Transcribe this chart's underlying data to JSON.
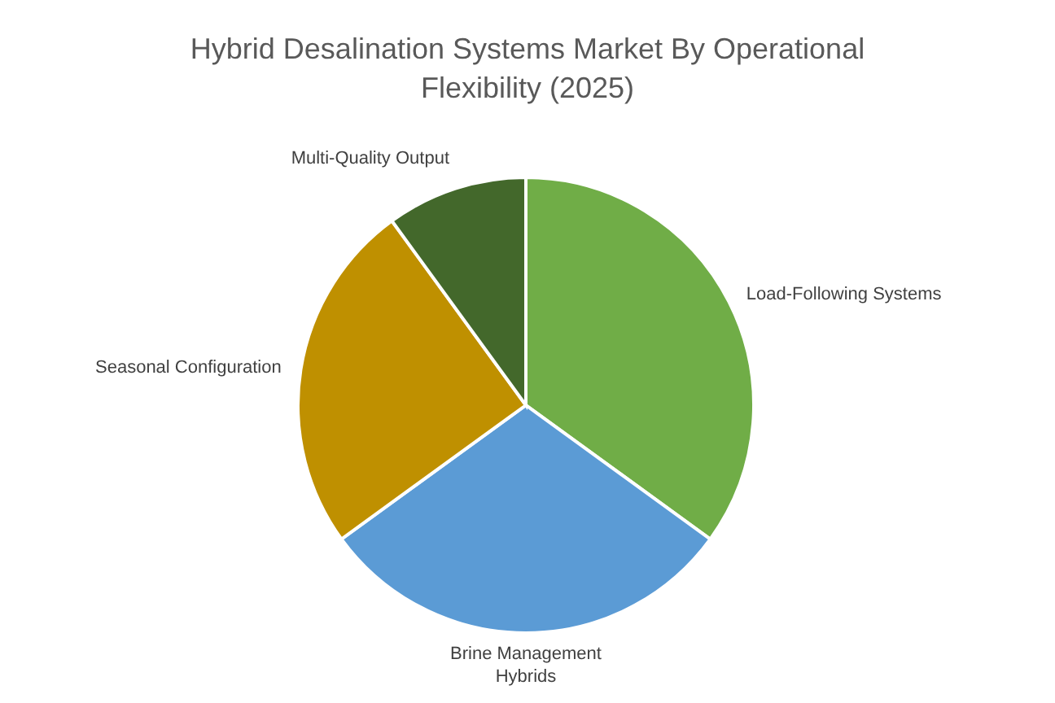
{
  "chart_data": {
    "type": "pie",
    "title": "Hybrid Desalination Systems Market By Operational Flexibility (2025)",
    "categories": [
      "Load-Following Systems",
      "Brine Management Hybrids",
      "Seasonal Configuration",
      "Multi-Quality Output"
    ],
    "values": [
      35,
      30,
      25,
      10
    ],
    "colors": [
      "#70ad47",
      "#5b9bd5",
      "#bf9000",
      "#43682b"
    ],
    "legend": false
  }
}
